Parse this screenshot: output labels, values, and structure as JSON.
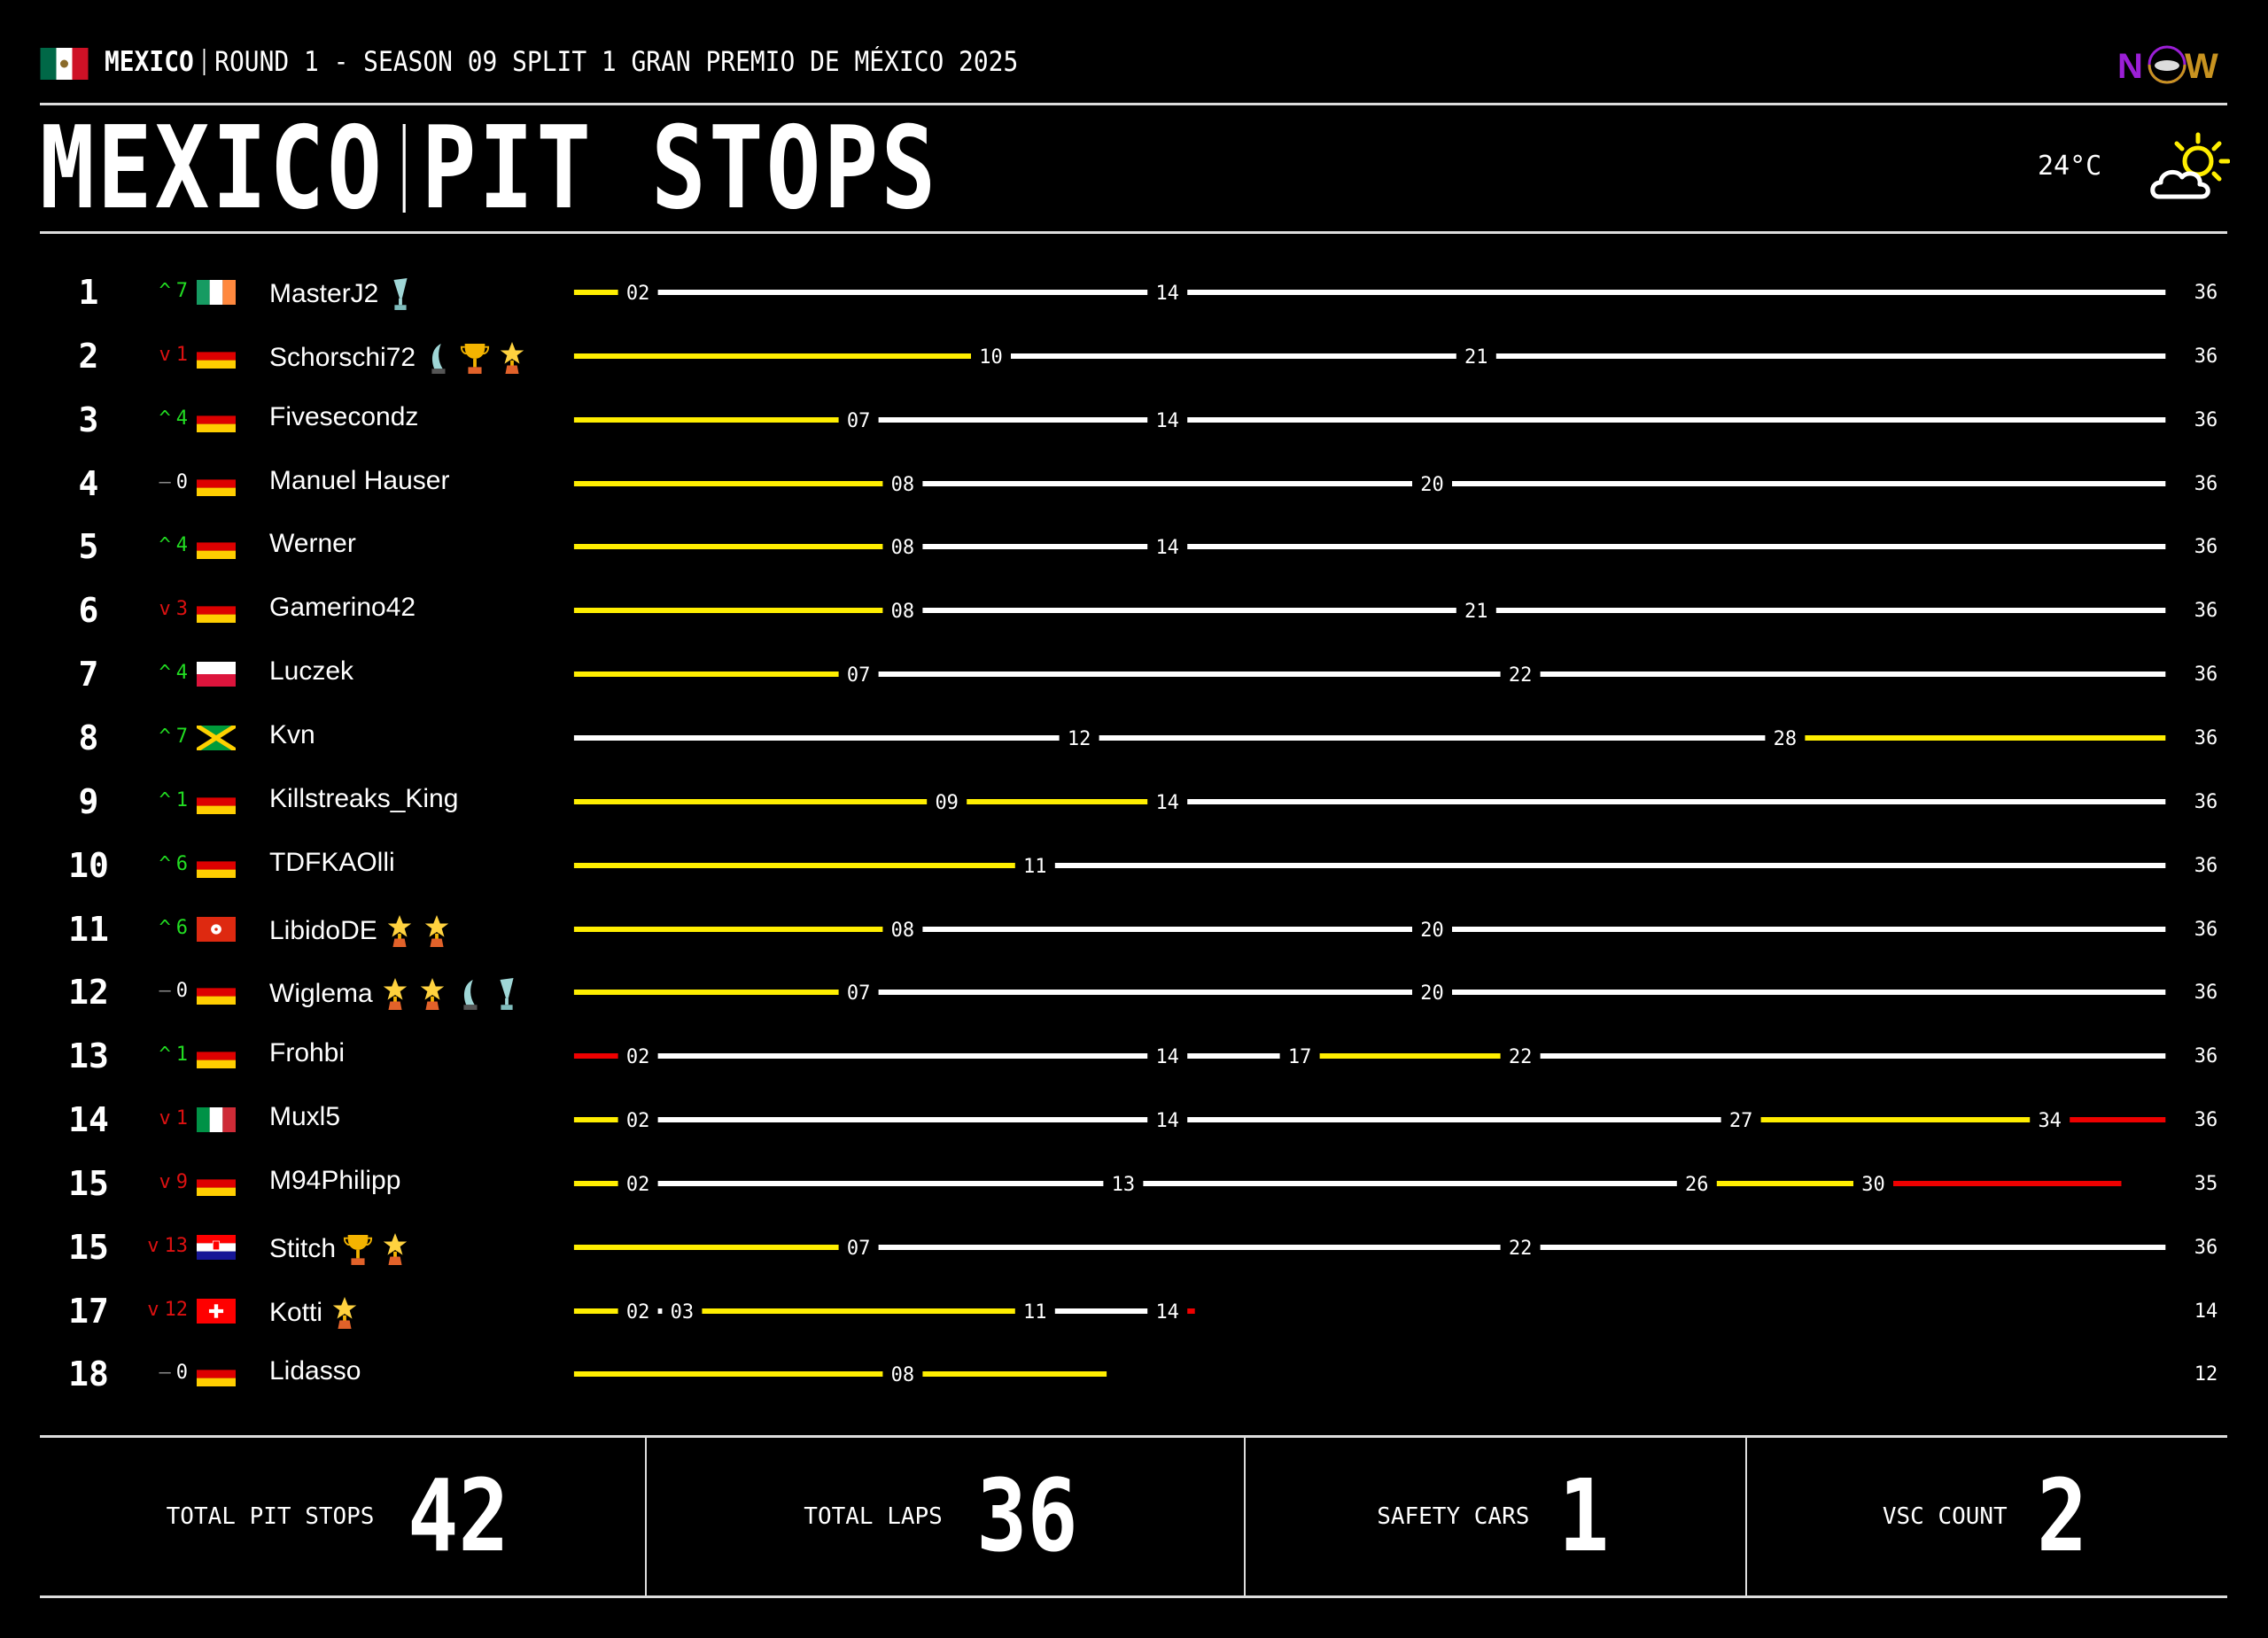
{
  "header": {
    "country_flag": "mexico",
    "country": "MEXICO",
    "event": "ROUND 1 - SEASON 09 SPLIT 1 GRAN PREMIO DE MÉXICO 2025",
    "logo_text": "NOW",
    "title_left": "MEXICO",
    "title_right": "PIT STOPS",
    "temperature": "24°C",
    "weather_icon": "partly-cloudy-icon"
  },
  "colors": {
    "soft": "#ee0000",
    "medium": "#ffee00",
    "hard": "#ffffff",
    "up": "#22dd22",
    "down": "#dd1111",
    "same": "#ffffff"
  },
  "chart_data": {
    "type": "timeline",
    "xlim": [
      0,
      36
    ],
    "rows": [
      {
        "pos": "1",
        "dir": "up",
        "change": "7",
        "flag": "ireland",
        "name": "MasterJ2",
        "awards": [
          "glass-trophy"
        ],
        "stints": [
          [
            "medium",
            2
          ],
          [
            "hard",
            14
          ],
          [
            "hard",
            36
          ]
        ],
        "pit_laps": [
          "02",
          "14"
        ],
        "final_lap": "36"
      },
      {
        "pos": "2",
        "dir": "down",
        "change": "1",
        "flag": "germany",
        "name": "Schorschi72",
        "awards": [
          "crystal-award",
          "gold-cup",
          "star-trophy"
        ],
        "stints": [
          [
            "medium",
            10
          ],
          [
            "hard",
            21
          ],
          [
            "hard",
            36
          ]
        ],
        "pit_laps": [
          "10",
          "21"
        ],
        "final_lap": "36"
      },
      {
        "pos": "3",
        "dir": "up",
        "change": "4",
        "flag": "germany",
        "name": "Fivesecondz",
        "awards": [],
        "stints": [
          [
            "medium",
            7
          ],
          [
            "hard",
            14
          ],
          [
            "hard",
            36
          ]
        ],
        "pit_laps": [
          "07",
          "14"
        ],
        "final_lap": "36"
      },
      {
        "pos": "4",
        "dir": "same",
        "change": "0",
        "flag": "germany",
        "name": "Manuel Hauser",
        "awards": [],
        "stints": [
          [
            "medium",
            8
          ],
          [
            "hard",
            20
          ],
          [
            "hard",
            36
          ]
        ],
        "pit_laps": [
          "08",
          "20"
        ],
        "final_lap": "36"
      },
      {
        "pos": "5",
        "dir": "up",
        "change": "4",
        "flag": "germany",
        "name": "Werner",
        "awards": [],
        "stints": [
          [
            "medium",
            8
          ],
          [
            "hard",
            14
          ],
          [
            "hard",
            36
          ]
        ],
        "pit_laps": [
          "08",
          "14"
        ],
        "final_lap": "36"
      },
      {
        "pos": "6",
        "dir": "down",
        "change": "3",
        "flag": "germany",
        "name": "Gamerino42",
        "awards": [],
        "stints": [
          [
            "medium",
            8
          ],
          [
            "hard",
            21
          ],
          [
            "hard",
            36
          ]
        ],
        "pit_laps": [
          "08",
          "21"
        ],
        "final_lap": "36"
      },
      {
        "pos": "7",
        "dir": "up",
        "change": "4",
        "flag": "poland",
        "name": "Luczek",
        "awards": [],
        "stints": [
          [
            "medium",
            7
          ],
          [
            "hard",
            22
          ],
          [
            "hard",
            36
          ]
        ],
        "pit_laps": [
          "07",
          "22"
        ],
        "final_lap": "36"
      },
      {
        "pos": "8",
        "dir": "up",
        "change": "7",
        "flag": "jamaica",
        "name": "Kvn",
        "awards": [],
        "stints": [
          [
            "hard",
            12
          ],
          [
            "hard",
            28
          ],
          [
            "medium",
            36
          ]
        ],
        "pit_laps": [
          "12",
          "28"
        ],
        "final_lap": "36"
      },
      {
        "pos": "9",
        "dir": "up",
        "change": "1",
        "flag": "germany",
        "name": "Killstreaks_King",
        "awards": [],
        "stints": [
          [
            "medium",
            9
          ],
          [
            "medium",
            14
          ],
          [
            "hard",
            36
          ]
        ],
        "pit_laps": [
          "09",
          "14"
        ],
        "final_lap": "36"
      },
      {
        "pos": "10",
        "dir": "up",
        "change": "6",
        "flag": "germany",
        "name": "TDFKAOlli",
        "awards": [],
        "stints": [
          [
            "medium",
            11
          ],
          [
            "hard",
            36
          ]
        ],
        "pit_laps": [
          "11"
        ],
        "final_lap": "36"
      },
      {
        "pos": "11",
        "dir": "up",
        "change": "6",
        "flag": "hong-kong",
        "name": "LibidoDE",
        "awards": [
          "star-trophy",
          "star-trophy"
        ],
        "stints": [
          [
            "medium",
            8
          ],
          [
            "hard",
            20
          ],
          [
            "hard",
            36
          ]
        ],
        "pit_laps": [
          "08",
          "20"
        ],
        "final_lap": "36"
      },
      {
        "pos": "12",
        "dir": "same",
        "change": "0",
        "flag": "germany",
        "name": "Wiglema",
        "awards": [
          "star-trophy",
          "star-trophy",
          "crystal-award",
          "glass-trophy"
        ],
        "stints": [
          [
            "medium",
            7
          ],
          [
            "hard",
            20
          ],
          [
            "hard",
            36
          ]
        ],
        "pit_laps": [
          "07",
          "20"
        ],
        "final_lap": "36"
      },
      {
        "pos": "13",
        "dir": "up",
        "change": "1",
        "flag": "germany",
        "name": "Frohbi",
        "awards": [],
        "stints": [
          [
            "soft",
            2
          ],
          [
            "hard",
            14
          ],
          [
            "hard",
            17
          ],
          [
            "medium",
            22
          ],
          [
            "hard",
            36
          ]
        ],
        "pit_laps": [
          "02",
          "14",
          "17",
          "22"
        ],
        "final_lap": "36"
      },
      {
        "pos": "14",
        "dir": "down",
        "change": "1",
        "flag": "italy",
        "name": "Muxl5",
        "awards": [],
        "stints": [
          [
            "medium",
            2
          ],
          [
            "hard",
            14
          ],
          [
            "hard",
            27
          ],
          [
            "medium",
            34
          ],
          [
            "soft",
            36
          ]
        ],
        "pit_laps": [
          "02",
          "14",
          "27",
          "34"
        ],
        "final_lap": "36"
      },
      {
        "pos": "15",
        "dir": "down",
        "change": "9",
        "flag": "germany",
        "name": "M94Philipp",
        "awards": [],
        "stints": [
          [
            "medium",
            2
          ],
          [
            "hard",
            13
          ],
          [
            "hard",
            26
          ],
          [
            "medium",
            30
          ],
          [
            "soft",
            35
          ]
        ],
        "pit_laps": [
          "02",
          "13",
          "26",
          "30"
        ],
        "final_lap": "35"
      },
      {
        "pos": "15",
        "dir": "down",
        "change": "13",
        "flag": "croatia",
        "name": "Stitch",
        "awards": [
          "gold-cup",
          "star-trophy"
        ],
        "stints": [
          [
            "medium",
            7
          ],
          [
            "hard",
            22
          ],
          [
            "hard",
            36
          ]
        ],
        "pit_laps": [
          "07",
          "22"
        ],
        "final_lap": "36"
      },
      {
        "pos": "17",
        "dir": "down",
        "change": "12",
        "flag": "switzerland",
        "name": "Kotti",
        "awards": [
          "star-trophy"
        ],
        "stints": [
          [
            "medium",
            2
          ],
          [
            "hard",
            3
          ],
          [
            "medium",
            11
          ],
          [
            "hard",
            14
          ],
          [
            "soft",
            14
          ]
        ],
        "pit_laps": [
          "02",
          "03",
          "11",
          "14"
        ],
        "final_lap": "14"
      },
      {
        "pos": "18",
        "dir": "same",
        "change": "0",
        "flag": "germany",
        "name": "Lidasso",
        "awards": [],
        "stints": [
          [
            "medium",
            8
          ],
          [
            "medium",
            12
          ]
        ],
        "pit_laps": [
          "08"
        ],
        "final_lap": "12"
      }
    ]
  },
  "footer": {
    "stats": [
      {
        "label": "TOTAL PIT STOPS",
        "value": "42"
      },
      {
        "label": "TOTAL LAPS",
        "value": "36"
      },
      {
        "label": "SAFETY CARS",
        "value": "1"
      },
      {
        "label": "VSC COUNT",
        "value": "2"
      }
    ]
  }
}
